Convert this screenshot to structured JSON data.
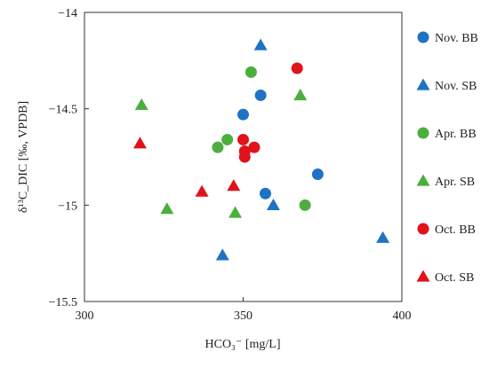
{
  "chart_data": {
    "type": "scatter",
    "xlabel": "HCO₃⁻ [mg/L]",
    "ylabel": "δ¹³C_DIC [‰, VPDB]",
    "xlim": [
      300,
      400
    ],
    "ylim": [
      -15.5,
      -14
    ],
    "x_ticks": [
      300,
      350,
      400
    ],
    "y_ticks": [
      -15.5,
      -15,
      -14.5,
      -14
    ],
    "x_tick_labels": [
      "300",
      "350",
      "400"
    ],
    "y_tick_labels": [
      "−15.5",
      "−15",
      "−14.5",
      "−14"
    ],
    "grid": false,
    "legend_position": "right",
    "series": [
      {
        "name": "Nov. BB",
        "marker": "circle",
        "color": "#1f72c4",
        "points": [
          [
            355.5,
            -14.43
          ],
          [
            350,
            -14.53
          ],
          [
            357,
            -14.94
          ],
          [
            373.5,
            -14.84
          ]
        ]
      },
      {
        "name": "Nov. SB",
        "marker": "triangle",
        "color": "#1f72c4",
        "points": [
          [
            355.5,
            -14.17
          ],
          [
            359.5,
            -15.0
          ],
          [
            343.5,
            -15.26
          ],
          [
            394,
            -15.17
          ]
        ]
      },
      {
        "name": "Apr. BB",
        "marker": "circle",
        "color": "#4caf3d",
        "points": [
          [
            352.5,
            -14.31
          ],
          [
            345,
            -14.66
          ],
          [
            342,
            -14.7
          ],
          [
            369.5,
            -15.0
          ]
        ]
      },
      {
        "name": "Apr. SB",
        "marker": "triangle",
        "color": "#4caf3d",
        "points": [
          [
            318,
            -14.48
          ],
          [
            368,
            -14.43
          ],
          [
            326,
            -15.02
          ],
          [
            347.5,
            -15.04
          ]
        ]
      },
      {
        "name": "Oct. BB",
        "marker": "circle",
        "color": "#e0131a",
        "points": [
          [
            367,
            -14.29
          ],
          [
            350,
            -14.66
          ],
          [
            353.5,
            -14.7
          ],
          [
            350.5,
            -14.72
          ],
          [
            350.5,
            -14.75
          ]
        ]
      },
      {
        "name": "Oct. SB",
        "marker": "triangle",
        "color": "#e0131a",
        "points": [
          [
            317.5,
            -14.68
          ],
          [
            337,
            -14.93
          ],
          [
            347,
            -14.9
          ]
        ]
      }
    ]
  }
}
